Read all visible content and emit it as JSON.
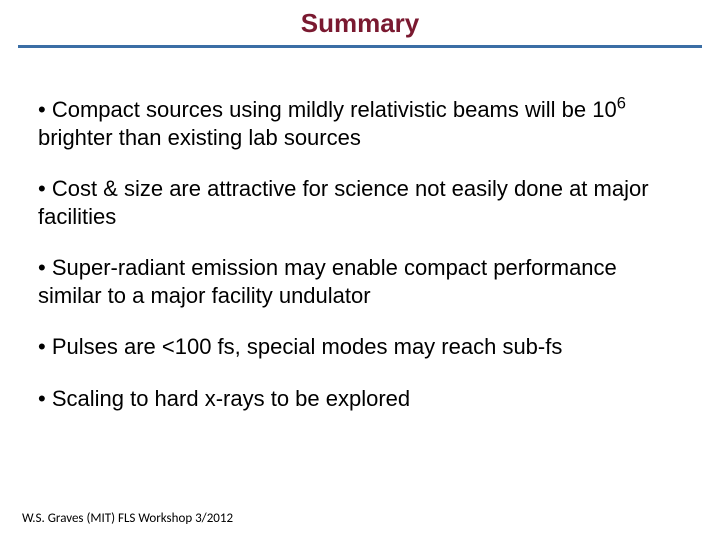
{
  "title": {
    "text": "Summary",
    "color": "#7a1930",
    "fontsize": 26
  },
  "divider": {
    "color": "#3b6ea5",
    "thickness": 3
  },
  "body": {
    "fontsize": 22,
    "color": "#000000"
  },
  "bullets": [
    {
      "pre": "Compact sources using mildly relativistic beams will be 10",
      "sup": "6",
      "post": " brighter than existing lab sources"
    },
    {
      "text": "Cost & size are attractive for science not easily done at major facilities"
    },
    {
      "text": "Super-radiant emission may enable compact performance similar to a major facility undulator"
    },
    {
      "text": "Pulses are <100 fs, special modes may reach sub-fs"
    },
    {
      "text": "Scaling to hard x-rays to be explored"
    }
  ],
  "footer": {
    "text": "W.S. Graves (MIT) FLS Workshop 3/2012",
    "fontsize": 13,
    "color": "#000000"
  }
}
